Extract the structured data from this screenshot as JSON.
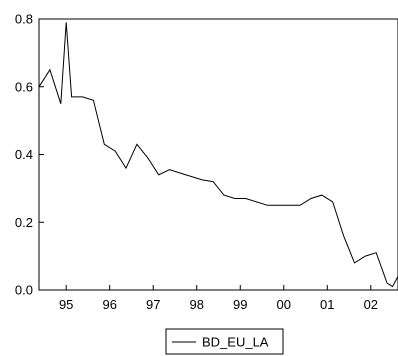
{
  "chart_data": {
    "type": "line",
    "title": "",
    "xlabel": "",
    "ylabel": "",
    "xlim": [
      1994.375,
      2002.625
    ],
    "ylim": [
      0.0,
      0.8
    ],
    "x_ticks": [
      {
        "value": 1995.0,
        "label": "95"
      },
      {
        "value": 1996.0,
        "label": "96"
      },
      {
        "value": 1997.0,
        "label": "97"
      },
      {
        "value": 1998.0,
        "label": "98"
      },
      {
        "value": 1999.0,
        "label": "99"
      },
      {
        "value": 2000.0,
        "label": "00"
      },
      {
        "value": 2001.0,
        "label": "01"
      },
      {
        "value": 2002.0,
        "label": "02"
      }
    ],
    "y_ticks": [
      {
        "value": 0.0,
        "label": "0.0"
      },
      {
        "value": 0.2,
        "label": "0.2"
      },
      {
        "value": 0.4,
        "label": "0.4"
      },
      {
        "value": 0.6,
        "label": "0.6"
      },
      {
        "value": 0.8,
        "label": "0.8"
      }
    ],
    "grid": false,
    "legend_position": "bottom-center",
    "series": [
      {
        "name": "BD_EU_LA",
        "color": "#000000",
        "x": [
          1994.375,
          1994.625,
          1994.875,
          1995.0,
          1995.125,
          1995.375,
          1995.625,
          1995.875,
          1996.125,
          1996.375,
          1996.625,
          1996.875,
          1997.125,
          1997.375,
          1997.625,
          1997.875,
          1998.125,
          1998.375,
          1998.625,
          1998.875,
          1999.125,
          1999.375,
          1999.625,
          1999.875,
          2000.125,
          2000.375,
          2000.625,
          2000.875,
          2001.125,
          2001.375,
          2001.625,
          2001.875,
          2002.125,
          2002.375,
          2002.5,
          2002.625
        ],
        "values": [
          0.6,
          0.65,
          0.55,
          0.79,
          0.57,
          0.57,
          0.56,
          0.43,
          0.41,
          0.36,
          0.43,
          0.39,
          0.34,
          0.355,
          0.345,
          0.335,
          0.325,
          0.32,
          0.28,
          0.27,
          0.27,
          0.26,
          0.25,
          0.25,
          0.25,
          0.25,
          0.27,
          0.28,
          0.26,
          0.16,
          0.08,
          0.1,
          0.11,
          0.02,
          0.01,
          0.04
        ]
      }
    ]
  }
}
